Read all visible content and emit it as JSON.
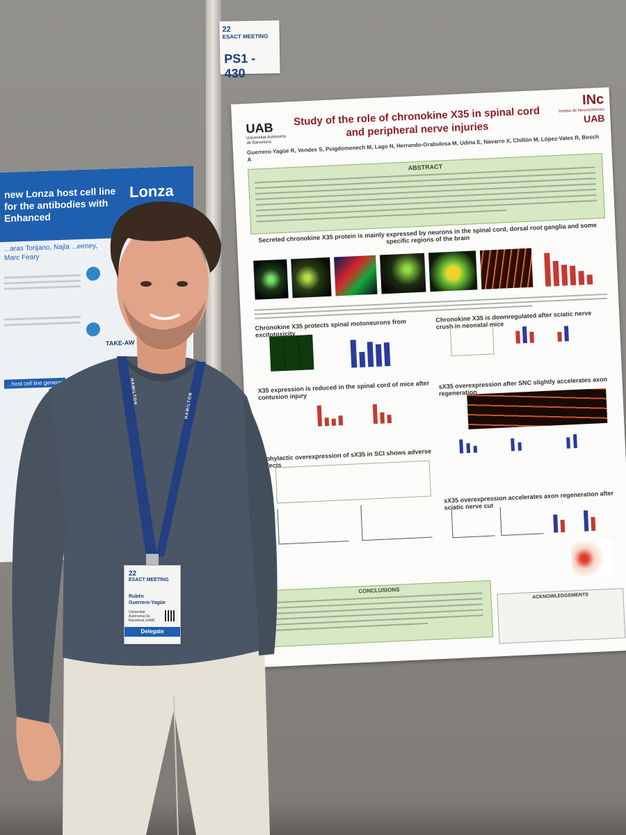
{
  "left_poster": {
    "title": "new Lonza host cell line for the antibodies with Enhanced",
    "brand": "Lonza",
    "authors": "...aras Torijano, Najla ...eeney, Marc Feary",
    "section": "TAKE-AW",
    "label": "...host cell line generat"
  },
  "board_card": {
    "year": "22",
    "meeting": "ESACT MEETING",
    "id": "PS1 - 430"
  },
  "poster": {
    "university": "UAB",
    "university_sub": "Universitat Autònoma de Barcelona",
    "title": "Study of the role of chronokine X35 in spinal cord and peripheral nerve injuries",
    "institute": "INc",
    "institute_sub": "Institut de Neurociències",
    "institute_uab": "UAB",
    "authors": "Guerrero-Yagüe R, Vendes S, Puigdomenech M, Lago N, Herrando-Grabulosa M, Udina E, Navarro X, Chillón M, López-Vales R, Bosch A",
    "abstract_heading": "ABSTRACT",
    "section1": "Secreted chronokine X35 protein is mainly expressed by neurons in the spinal cord, dorsal root ganglia and some specific regions of the brain",
    "section2": "Chronokine X35 protects spinal motoneurons from excitotoxicity",
    "section3": "Chronokine X35 is downregulated after sciatic nerve crush in neonatal mice",
    "section4": "X35 expression is reduced in the spinal cord of mice after contusion injury",
    "section5": "sX35 overexpression after SNC slightly accelerates axon regeneration",
    "section6": "...phylactic overexpression of sX35 in SCI shows adverse effects",
    "section7": "sX35 overexpression accelerates axon regeneration after sciatic nerve cut",
    "conclusions_heading": "CONCLUSIONS",
    "ack_heading": "ACKNOWLEDGEMENTS"
  },
  "badge": {
    "year": "22",
    "meeting": "ESACT MEETING",
    "name_first": "Rubén",
    "name_last": "Guerrero-Yagüe",
    "org": "Universitat Autònoma De Barcelona (UAB)",
    "role": "Delegate"
  },
  "lanyard": {
    "text": "HAMILTON"
  },
  "colors": {
    "poster_title": "#8b1f24",
    "abstract_bg": "#d8e7c4",
    "lonza_blue": "#1f5fb0",
    "sweater": "#4a5666",
    "trousers": "#e6e1d6"
  }
}
